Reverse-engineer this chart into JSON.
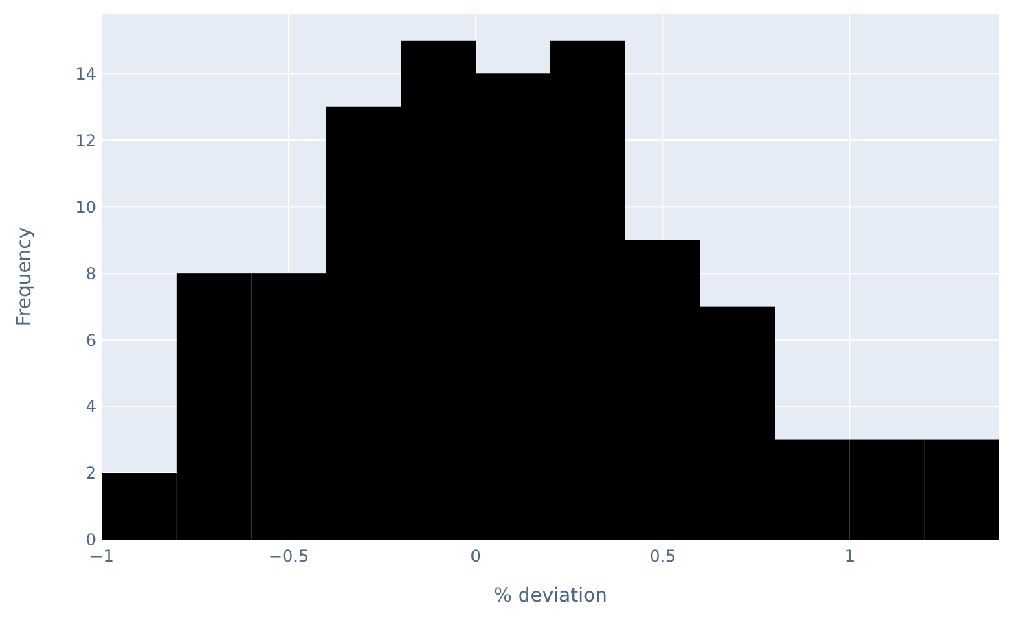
{
  "chart_data": {
    "type": "histogram",
    "xlabel": "% deviation",
    "ylabel": "Frequency",
    "bins": [
      -1,
      -0.8,
      -0.6,
      -0.4,
      -0.2,
      0,
      0.2,
      0.4,
      0.6,
      0.8,
      1,
      1.2,
      1.4
    ],
    "values": [
      2,
      8,
      8,
      13,
      15,
      14,
      15,
      9,
      7,
      3,
      3,
      3
    ],
    "color": "#000000",
    "xlim": [
      -1,
      1.4
    ],
    "xticks": [
      {
        "value": -1,
        "label": "−1"
      },
      {
        "value": -0.5,
        "label": "−0.5"
      },
      0,
      0.5,
      1
    ],
    "ylim": [
      0,
      15.8
    ],
    "yticks": [
      0,
      2,
      4,
      6,
      8,
      10,
      12,
      14
    ],
    "grid": true
  }
}
